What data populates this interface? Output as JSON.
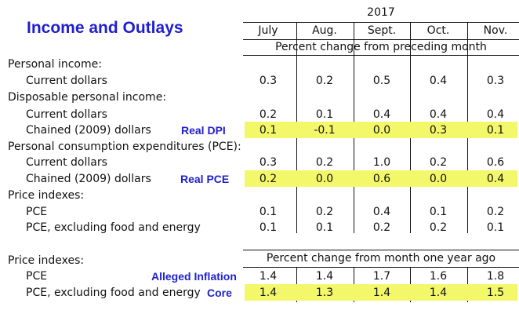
{
  "title": "Income and Outlays",
  "year": "2017",
  "months": [
    "July",
    "Aug.",
    "Sept.",
    "Oct.",
    "Nov."
  ],
  "header1": "Percent change from preceding month",
  "header2": "Percent change from month one year ago",
  "colors": {
    "title": "#1f1fd0",
    "highlight": "#f3f76a",
    "annotation": "#1f1fd0"
  },
  "section1": [
    {
      "label": "Personal income:",
      "indent": false,
      "values": [],
      "highlight": false
    },
    {
      "label": "Current dollars",
      "indent": true,
      "values": [
        "0.3",
        "0.2",
        "0.5",
        "0.4",
        "0.3"
      ],
      "highlight": false
    },
    {
      "label": "Disposable personal income:",
      "indent": false,
      "values": [],
      "highlight": false
    },
    {
      "label": "Current dollars",
      "indent": true,
      "values": [
        "0.2",
        "0.1",
        "0.4",
        "0.4",
        "0.4"
      ],
      "highlight": false
    },
    {
      "label": "Chained (2009) dollars",
      "indent": true,
      "values": [
        "0.1",
        "-0.1",
        "0.0",
        "0.3",
        "0.1"
      ],
      "highlight": true,
      "annotation": "Real DPI"
    },
    {
      "label": "Personal consumption expenditures (PCE):",
      "indent": false,
      "values": [],
      "highlight": false
    },
    {
      "label": "Current dollars",
      "indent": true,
      "values": [
        "0.3",
        "0.2",
        "1.0",
        "0.2",
        "0.6"
      ],
      "highlight": false
    },
    {
      "label": "Chained (2009) dollars",
      "indent": true,
      "values": [
        "0.2",
        "0.0",
        "0.6",
        "0.0",
        "0.4"
      ],
      "highlight": true,
      "annotation": "Real PCE"
    },
    {
      "label": "Price indexes:",
      "indent": false,
      "values": [],
      "highlight": false
    },
    {
      "label": "PCE",
      "indent": true,
      "values": [
        "0.1",
        "0.2",
        "0.4",
        "0.1",
        "0.2"
      ],
      "highlight": false
    },
    {
      "label": "PCE, excluding food and energy",
      "indent": true,
      "values": [
        "0.1",
        "0.1",
        "0.2",
        "0.2",
        "0.1"
      ],
      "highlight": false
    }
  ],
  "section2": [
    {
      "label": "Price indexes:",
      "indent": false,
      "values": [],
      "highlight": false
    },
    {
      "label": "PCE",
      "indent": true,
      "values": [
        "1.4",
        "1.4",
        "1.7",
        "1.6",
        "1.8"
      ],
      "highlight": false,
      "annotation": "Alleged Inflation"
    },
    {
      "label": "PCE, excluding food and energy",
      "indent": true,
      "values": [
        "1.4",
        "1.3",
        "1.4",
        "1.4",
        "1.5"
      ],
      "highlight": true,
      "annotation": "Core"
    }
  ]
}
